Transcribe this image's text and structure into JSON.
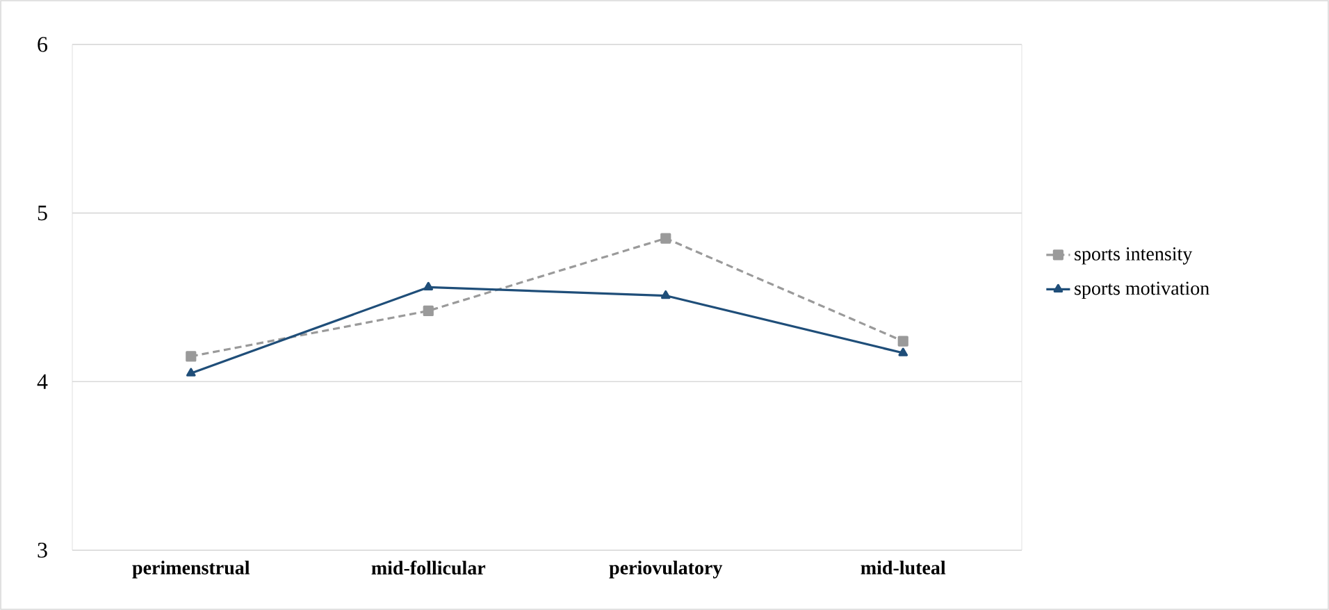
{
  "chart_data": {
    "type": "line",
    "categories": [
      "perimenstrual",
      "mid-follicular",
      "periovulatory",
      "mid-luteal"
    ],
    "series": [
      {
        "name": "sports intensity",
        "color": "#9a9a9a",
        "values": [
          4.15,
          4.42,
          4.85,
          4.24
        ],
        "marker": "square",
        "line_style": "dashed"
      },
      {
        "name": "sports motivation",
        "color": "#1f4e79",
        "values": [
          4.05,
          4.56,
          4.51,
          4.17
        ],
        "marker": "triangle",
        "line_style": "solid"
      }
    ],
    "ylim": [
      3,
      6
    ],
    "yticks": [
      3,
      4,
      5,
      6
    ],
    "grid": "y",
    "legend": "right"
  }
}
